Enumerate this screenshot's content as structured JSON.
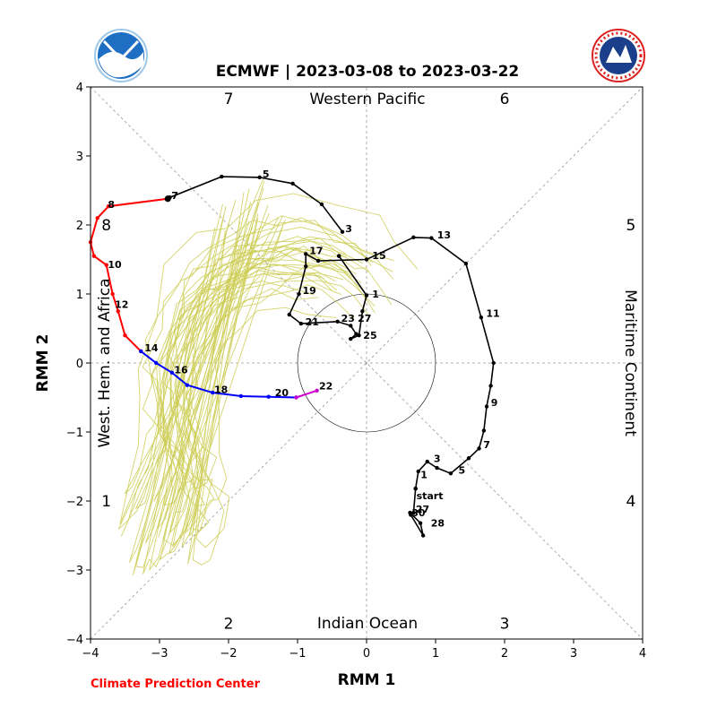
{
  "chart_data": {
    "type": "line",
    "title": "ECMWF | 2023-03-08 to 2023-03-22",
    "xlabel": "RMM 1",
    "ylabel": "RMM 2",
    "xlim": [
      -4,
      4
    ],
    "ylim": [
      -4,
      4
    ],
    "xticks": [
      "−4",
      "−3",
      "−2",
      "−1",
      "0",
      "1",
      "2",
      "3",
      "4"
    ],
    "yticks": [
      "−4",
      "−3",
      "−2",
      "−1",
      "0",
      "1",
      "2",
      "3",
      "4"
    ],
    "phases": [
      {
        "label": "1",
        "x": -3.77,
        "y": -2.0
      },
      {
        "label": "2",
        "x": -2.0,
        "y": -3.77
      },
      {
        "label": "3",
        "x": 2.0,
        "y": -3.77
      },
      {
        "label": "4",
        "x": 3.83,
        "y": -2.0
      },
      {
        "label": "5",
        "x": 3.83,
        "y": 2.0
      },
      {
        "label": "6",
        "x": 2.0,
        "y": 3.83
      },
      {
        "label": "7",
        "x": -2.0,
        "y": 3.83
      },
      {
        "label": "8",
        "x": -3.77,
        "y": 2.0
      }
    ],
    "regions": {
      "top": "Western Pacific",
      "bottom": "Indian Ocean",
      "left": "West. Hem. and Africa",
      "right": "Maritime Continent"
    },
    "colors": {
      "observed": "#000000",
      "forecast_week1": "#ff0000",
      "forecast_week2": "#0000ff",
      "forecast_week3": "#cc00cc",
      "ensemble": "#cccc55",
      "guides": "#999999"
    },
    "series": [
      {
        "values": [
          {
            "x": 0.71,
            "y": -1.82
          },
          {
            "x": 0.75,
            "y": -1.57
          },
          {
            "x": 0.88,
            "y": -1.43
          },
          {
            "x": 1.02,
            "y": -1.52
          },
          {
            "x": 1.22,
            "y": -1.6
          },
          {
            "x": 1.48,
            "y": -1.38
          },
          {
            "x": 1.63,
            "y": -1.24
          },
          {
            "x": 1.7,
            "y": -0.98
          },
          {
            "x": 1.74,
            "y": -0.63
          },
          {
            "x": 1.8,
            "y": -0.33
          },
          {
            "x": 1.84,
            "y": 0.0
          },
          {
            "x": 1.66,
            "y": 0.66
          },
          {
            "x": 1.44,
            "y": 1.44
          },
          {
            "x": 0.94,
            "y": 1.81
          },
          {
            "x": 0.68,
            "y": 1.82
          },
          {
            "x": 0.0,
            "y": 1.5
          },
          {
            "x": -0.7,
            "y": 1.48
          },
          {
            "x": -0.88,
            "y": 1.58
          },
          {
            "x": -0.88,
            "y": 1.4
          },
          {
            "x": -0.98,
            "y": 1.0
          },
          {
            "x": -1.12,
            "y": 0.7
          },
          {
            "x": -0.95,
            "y": 0.57
          },
          {
            "x": -0.42,
            "y": 0.6
          },
          {
            "x": -0.23,
            "y": 0.54
          },
          {
            "x": -0.15,
            "y": 0.42
          },
          {
            "x": -0.23,
            "y": 0.35
          },
          {
            "x": -0.11,
            "y": 0.4
          },
          {
            "x": -0.06,
            "y": 0.75
          },
          {
            "x": 0.0,
            "y": 0.98
          },
          {
            "x": -0.4,
            "y": 1.55
          },
          {
            "x": -0.4,
            "y": 1.55
          }
        ]
      },
      {
        "values": [
          {
            "x": 0.71,
            "y": -1.82
          },
          {
            "x": 0.68,
            "y": -2.17
          },
          {
            "x": 0.63,
            "y": -2.17
          },
          {
            "x": 0.78,
            "y": -2.32
          },
          {
            "x": 0.82,
            "y": -2.5
          },
          {
            "x": 0.64,
            "y": -2.2
          }
        ]
      },
      {
        "values": [
          {
            "x": -0.35,
            "y": 1.9
          },
          {
            "x": -0.65,
            "y": 2.3
          },
          {
            "x": -1.07,
            "y": 2.6
          },
          {
            "x": -1.55,
            "y": 2.69
          },
          {
            "x": -2.1,
            "y": 2.7
          },
          {
            "x": -2.85,
            "y": 2.4
          },
          {
            "x": -2.88,
            "y": 2.37
          }
        ]
      },
      {
        "values": [
          {
            "x": -2.88,
            "y": 2.38
          },
          {
            "x": -3.74,
            "y": 2.27
          },
          {
            "x": -3.9,
            "y": 2.1
          },
          {
            "x": -4.0,
            "y": 1.75
          },
          {
            "x": -3.95,
            "y": 1.55
          },
          {
            "x": -3.77,
            "y": 1.42
          },
          {
            "x": -3.68,
            "y": 1.0
          },
          {
            "x": -3.6,
            "y": 0.75
          },
          {
            "x": -3.5,
            "y": 0.4
          },
          {
            "x": -3.27,
            "y": 0.17
          }
        ]
      },
      {
        "values": [
          {
            "x": -3.27,
            "y": 0.17
          },
          {
            "x": -3.05,
            "y": 0.0
          },
          {
            "x": -2.82,
            "y": -0.14
          },
          {
            "x": -2.6,
            "y": -0.32
          },
          {
            "x": -2.23,
            "y": -0.43
          },
          {
            "x": -1.82,
            "y": -0.48
          },
          {
            "x": -1.42,
            "y": -0.49
          },
          {
            "x": -1.02,
            "y": -0.5
          }
        ]
      },
      {
        "values": [
          {
            "x": -1.02,
            "y": -0.5
          },
          {
            "x": -0.72,
            "y": -0.4
          }
        ]
      }
    ],
    "annotations": [
      {
        "text": "start",
        "x": 0.67,
        "y": -1.92
      },
      {
        "text": "1",
        "x": 0.73,
        "y": -1.62
      },
      {
        "text": "3",
        "x": 0.92,
        "y": -1.38
      },
      {
        "text": "5",
        "x": 1.28,
        "y": -1.55
      },
      {
        "text": "7",
        "x": 1.64,
        "y": -1.18
      },
      {
        "text": "9",
        "x": 1.75,
        "y": -0.57
      },
      {
        "text": "11",
        "x": 1.68,
        "y": 0.72
      },
      {
        "text": "13",
        "x": 0.97,
        "y": 1.86
      },
      {
        "text": "15",
        "x": 0.03,
        "y": 1.56
      },
      {
        "text": "17",
        "x": -0.88,
        "y": 1.63
      },
      {
        "text": "19",
        "x": -0.98,
        "y": 1.05
      },
      {
        "text": "21",
        "x": -0.94,
        "y": 0.6
      },
      {
        "text": "23",
        "x": -0.42,
        "y": 0.65
      },
      {
        "text": "25",
        "x": -0.1,
        "y": 0.4
      },
      {
        "text": "27",
        "x": -0.18,
        "y": 0.65
      },
      {
        "text": "1",
        "x": 0.03,
        "y": 1.0
      },
      {
        "text": "3",
        "x": -0.36,
        "y": 1.95
      },
      {
        "text": "5",
        "x": -1.56,
        "y": 2.74
      },
      {
        "text": "7",
        "x": -2.88,
        "y": 2.43
      },
      {
        "text": "8",
        "x": -3.8,
        "y": 2.3
      },
      {
        "text": "10",
        "x": -3.8,
        "y": 1.43
      },
      {
        "text": "12",
        "x": -3.7,
        "y": 0.85
      },
      {
        "text": "14",
        "x": -3.27,
        "y": 0.22
      },
      {
        "text": "16",
        "x": -2.84,
        "y": -0.1
      },
      {
        "text": "18",
        "x": -2.26,
        "y": -0.38
      },
      {
        "text": "20",
        "x": -1.38,
        "y": -0.43
      },
      {
        "text": "22",
        "x": -0.74,
        "y": -0.33
      },
      {
        "text": "27",
        "x": 0.66,
        "y": -2.12
      },
      {
        "text": "30",
        "x": 0.6,
        "y": -2.17
      },
      {
        "text": "28",
        "x": 0.88,
        "y": -2.32
      }
    ],
    "ensemble_members": 30
  },
  "footer": {
    "credit": "Climate Prediction Center"
  },
  "logos": {
    "left": "noaa-logo",
    "right": "nws-logo"
  }
}
